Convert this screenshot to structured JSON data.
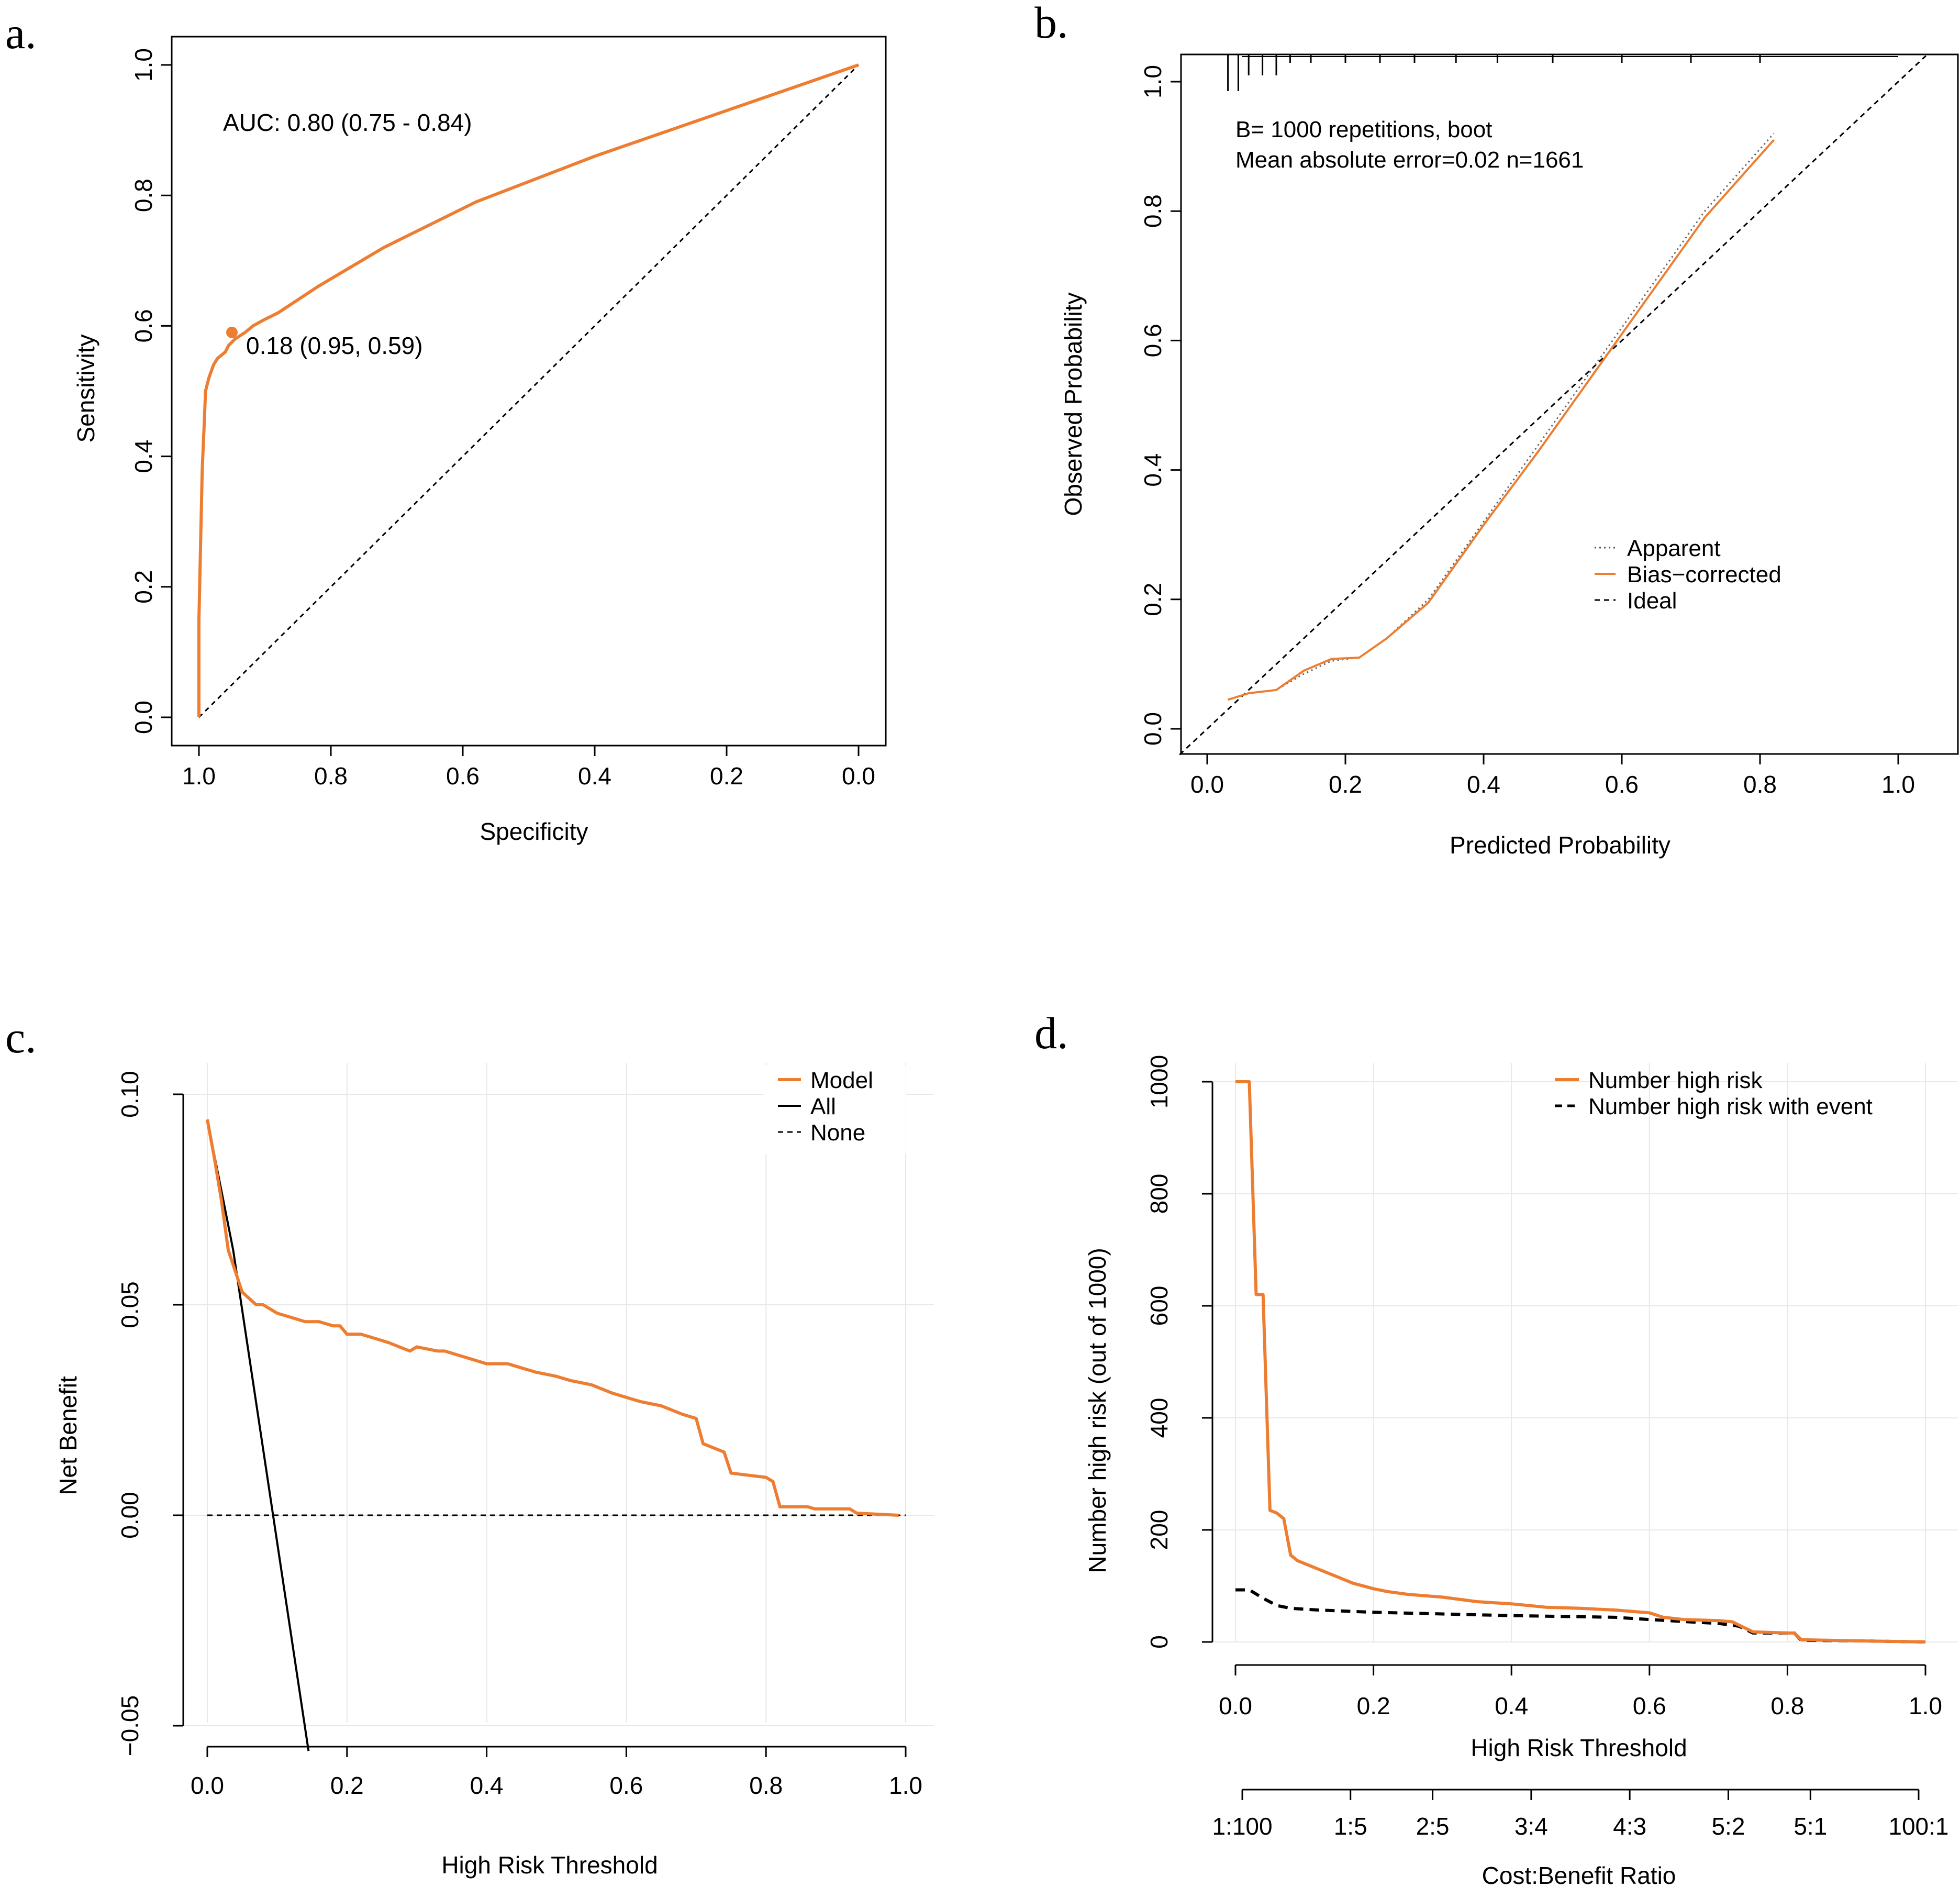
{
  "colors": {
    "orange": "#ED7D31",
    "black": "#000000",
    "grid": "#E8E8E8"
  },
  "chart_data": [
    {
      "panel": "a.",
      "type": "line",
      "title": "",
      "xlabel": "Specificity",
      "ylabel": "Sensitivity",
      "xlim": [
        1.0,
        0.0
      ],
      "ylim": [
        0.0,
        1.0
      ],
      "xticks": [
        "1.0",
        "0.8",
        "0.6",
        "0.4",
        "0.2",
        "0.0"
      ],
      "yticks": [
        "0.0",
        "0.2",
        "0.4",
        "0.6",
        "0.8",
        "1.0"
      ],
      "annotations": [
        "AUC: 0.80 (0.75 - 0.84)",
        "0.18 (0.95, 0.59)"
      ],
      "best_point": {
        "specificity": 0.95,
        "sensitivity": 0.59
      },
      "series": [
        {
          "name": "ROC",
          "x": [
            1.0,
            1.0,
            0.995,
            0.992,
            0.99,
            0.985,
            0.978,
            0.972,
            0.96,
            0.955,
            0.945,
            0.93,
            0.918,
            0.9,
            0.88,
            0.82,
            0.72,
            0.58,
            0.4,
            0.2,
            0.0
          ],
          "y": [
            0.0,
            0.15,
            0.38,
            0.45,
            0.5,
            0.52,
            0.54,
            0.55,
            0.56,
            0.57,
            0.58,
            0.59,
            0.6,
            0.61,
            0.62,
            0.66,
            0.72,
            0.79,
            0.86,
            0.93,
            1.0
          ]
        },
        {
          "name": "Reference",
          "x": [
            1.0,
            0.0
          ],
          "y": [
            0.0,
            1.0
          ]
        }
      ]
    },
    {
      "panel": "b.",
      "type": "line",
      "xlabel": "Predicted Probability",
      "ylabel": "Observed Probability",
      "xlim": [
        0.0,
        1.0
      ],
      "ylim": [
        0.0,
        1.0
      ],
      "xticks": [
        "0.0",
        "0.2",
        "0.4",
        "0.6",
        "0.8",
        "1.0"
      ],
      "yticks": [
        "0.0",
        "0.2",
        "0.4",
        "0.6",
        "0.8",
        "1.0"
      ],
      "annotations": [
        "B= 1000 repetitions, boot",
        "Mean absolute error=0.02 n=1661"
      ],
      "legend": [
        "Apparent",
        "Bias−corrected",
        "Ideal"
      ],
      "series": [
        {
          "name": "Apparent",
          "x": [
            0.03,
            0.06,
            0.1,
            0.14,
            0.18,
            0.22,
            0.26,
            0.32,
            0.4,
            0.48,
            0.56,
            0.64,
            0.72,
            0.82
          ],
          "y": [
            0.045,
            0.055,
            0.06,
            0.085,
            0.105,
            0.11,
            0.14,
            0.2,
            0.32,
            0.44,
            0.56,
            0.68,
            0.8,
            0.92
          ]
        },
        {
          "name": "Bias−corrected",
          "x": [
            0.03,
            0.06,
            0.1,
            0.14,
            0.18,
            0.22,
            0.26,
            0.32,
            0.4,
            0.48,
            0.56,
            0.64,
            0.72,
            0.82
          ],
          "y": [
            0.045,
            0.055,
            0.06,
            0.09,
            0.108,
            0.11,
            0.14,
            0.195,
            0.315,
            0.43,
            0.55,
            0.67,
            0.79,
            0.91
          ]
        },
        {
          "name": "Ideal",
          "x": [
            -0.04,
            1.04
          ],
          "y": [
            -0.04,
            1.04
          ]
        }
      ],
      "rug": [
        0.03,
        0.045,
        0.06,
        0.08,
        0.1,
        0.12,
        0.15,
        0.2,
        0.25,
        0.3,
        0.36,
        0.42,
        0.5,
        0.6,
        0.7,
        0.8
      ]
    },
    {
      "panel": "c.",
      "type": "line",
      "xlabel": "High Risk Threshold",
      "ylabel": "Net Benefit",
      "xlim": [
        0.0,
        1.0
      ],
      "ylim": [
        -0.05,
        0.1
      ],
      "xticks": [
        "0.0",
        "0.2",
        "0.4",
        "0.6",
        "0.8",
        "1.0"
      ],
      "yticks": [
        "−0.05",
        "0.00",
        "0.05",
        "0.10"
      ],
      "legend": [
        "Model",
        "All",
        "None"
      ],
      "series": [
        {
          "name": "Model",
          "x": [
            0.0,
            0.01,
            0.02,
            0.03,
            0.05,
            0.07,
            0.08,
            0.1,
            0.12,
            0.14,
            0.15,
            0.16,
            0.18,
            0.19,
            0.2,
            0.22,
            0.24,
            0.26,
            0.29,
            0.3,
            0.33,
            0.34,
            0.36,
            0.4,
            0.43,
            0.45,
            0.47,
            0.5,
            0.52,
            0.55,
            0.58,
            0.6,
            0.62,
            0.65,
            0.68,
            0.7,
            0.71,
            0.74,
            0.75,
            0.8,
            0.81,
            0.82,
            0.86,
            0.87,
            0.92,
            0.93,
            0.99
          ],
          "y": [
            0.094,
            0.085,
            0.075,
            0.063,
            0.053,
            0.05,
            0.05,
            0.048,
            0.047,
            0.046,
            0.046,
            0.046,
            0.045,
            0.045,
            0.043,
            0.043,
            0.042,
            0.041,
            0.039,
            0.04,
            0.039,
            0.039,
            0.038,
            0.036,
            0.036,
            0.035,
            0.034,
            0.033,
            0.032,
            0.031,
            0.029,
            0.028,
            0.027,
            0.026,
            0.024,
            0.023,
            0.017,
            0.015,
            0.01,
            0.009,
            0.008,
            0.002,
            0.002,
            0.0015,
            0.0015,
            0.0005,
            0.0
          ]
        },
        {
          "name": "All",
          "x": [
            0.0,
            0.037,
            0.145
          ],
          "y": [
            0.094,
            0.063,
            -0.056
          ]
        },
        {
          "name": "None",
          "x": [
            0.0,
            1.0
          ],
          "y": [
            0.0,
            0.0
          ]
        }
      ]
    },
    {
      "panel": "d.",
      "type": "line",
      "xlabel": "High Risk Threshold",
      "ylabel": "Number high risk (out of 1000)",
      "xlim": [
        0.0,
        1.0
      ],
      "ylim": [
        0,
        1000
      ],
      "xticks": [
        "0.0",
        "0.2",
        "0.4",
        "0.6",
        "0.8",
        "1.0"
      ],
      "yticks": [
        "0",
        "200",
        "400",
        "600",
        "800",
        "1000"
      ],
      "secondary_axis_label": "Cost:Benefit Ratio",
      "secondary_ticks": [
        "1:100",
        "1:5",
        "2:5",
        "3:4",
        "4:3",
        "5:2",
        "5:1",
        "100:1"
      ],
      "legend": [
        "Number high risk",
        "Number high risk with event"
      ],
      "series": [
        {
          "name": "Number high risk",
          "x": [
            0.0,
            0.02,
            0.03,
            0.04,
            0.05,
            0.06,
            0.07,
            0.08,
            0.09,
            0.1,
            0.12,
            0.15,
            0.17,
            0.2,
            0.22,
            0.25,
            0.3,
            0.35,
            0.4,
            0.45,
            0.5,
            0.55,
            0.6,
            0.62,
            0.65,
            0.7,
            0.72,
            0.73,
            0.75,
            0.8,
            0.81,
            0.82,
            0.9,
            1.0
          ],
          "y": [
            1000,
            1000,
            620,
            620,
            235,
            230,
            220,
            155,
            145,
            140,
            130,
            115,
            105,
            95,
            90,
            85,
            80,
            72,
            68,
            62,
            60,
            57,
            52,
            44,
            40,
            38,
            36,
            30,
            18,
            16,
            16,
            4,
            2,
            0
          ]
        },
        {
          "name": "Number high risk with event",
          "x": [
            0.0,
            0.02,
            0.04,
            0.06,
            0.08,
            0.12,
            0.2,
            0.3,
            0.4,
            0.5,
            0.55,
            0.6,
            0.7,
            0.72,
            0.73,
            0.75,
            0.8,
            0.81,
            0.82,
            0.9,
            1.0
          ],
          "y": [
            93,
            93,
            78,
            65,
            60,
            57,
            53,
            50,
            47,
            45,
            44,
            40,
            33,
            30,
            28,
            16,
            16,
            16,
            3,
            2,
            0
          ]
        }
      ]
    }
  ]
}
